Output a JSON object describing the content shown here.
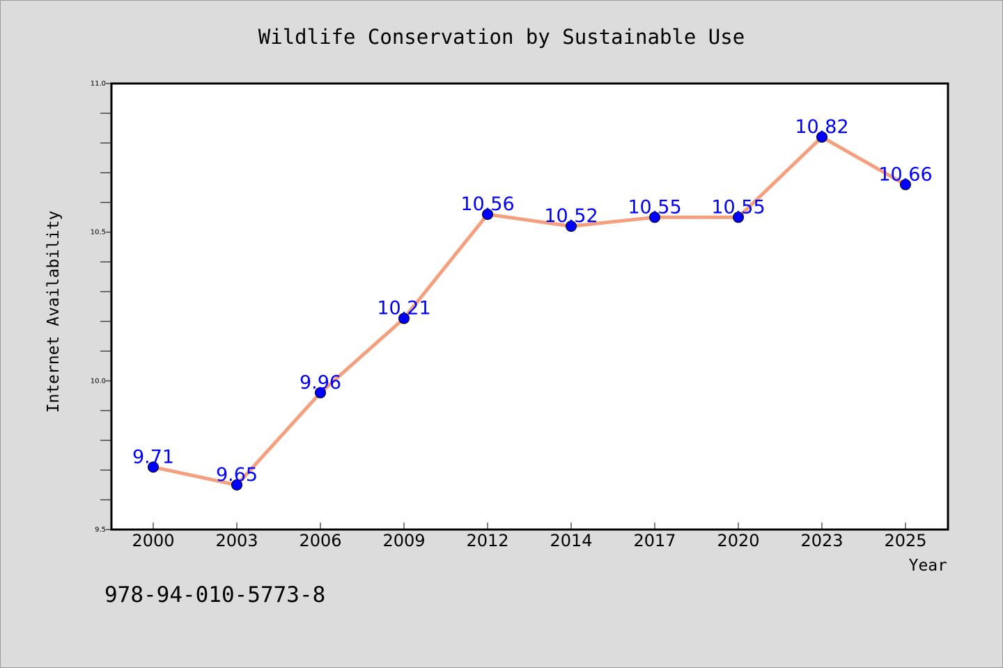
{
  "chart_data": {
    "type": "line",
    "title": "Wildlife Conservation by Sustainable Use",
    "xlabel": "Year",
    "ylabel": "Internet Availability",
    "categories": [
      "2000",
      "2003",
      "2006",
      "2009",
      "2012",
      "2014",
      "2017",
      "2020",
      "2023",
      "2025"
    ],
    "series": [
      {
        "values": [
          9.71,
          9.65,
          9.96,
          10.21,
          10.56,
          10.52,
          10.55,
          10.55,
          10.82,
          10.66
        ]
      }
    ],
    "data_labels": [
      "9.71",
      "9.65",
      "9.96",
      "10.21",
      "10.56",
      "10.52",
      "10.55",
      "10.55",
      "10.82",
      "10.66"
    ],
    "ylim": [
      9.5,
      11.0
    ],
    "yticks": [
      "9.5",
      "10.0",
      "10.5",
      "11.0"
    ],
    "grid": false,
    "colors": {
      "line": "#f4a07e",
      "marker": "#0000ff",
      "label": "#0000ff",
      "background": "#dcdcdc",
      "plot_background": "#ffffff"
    }
  },
  "isbn": "978-94-010-5773-8"
}
